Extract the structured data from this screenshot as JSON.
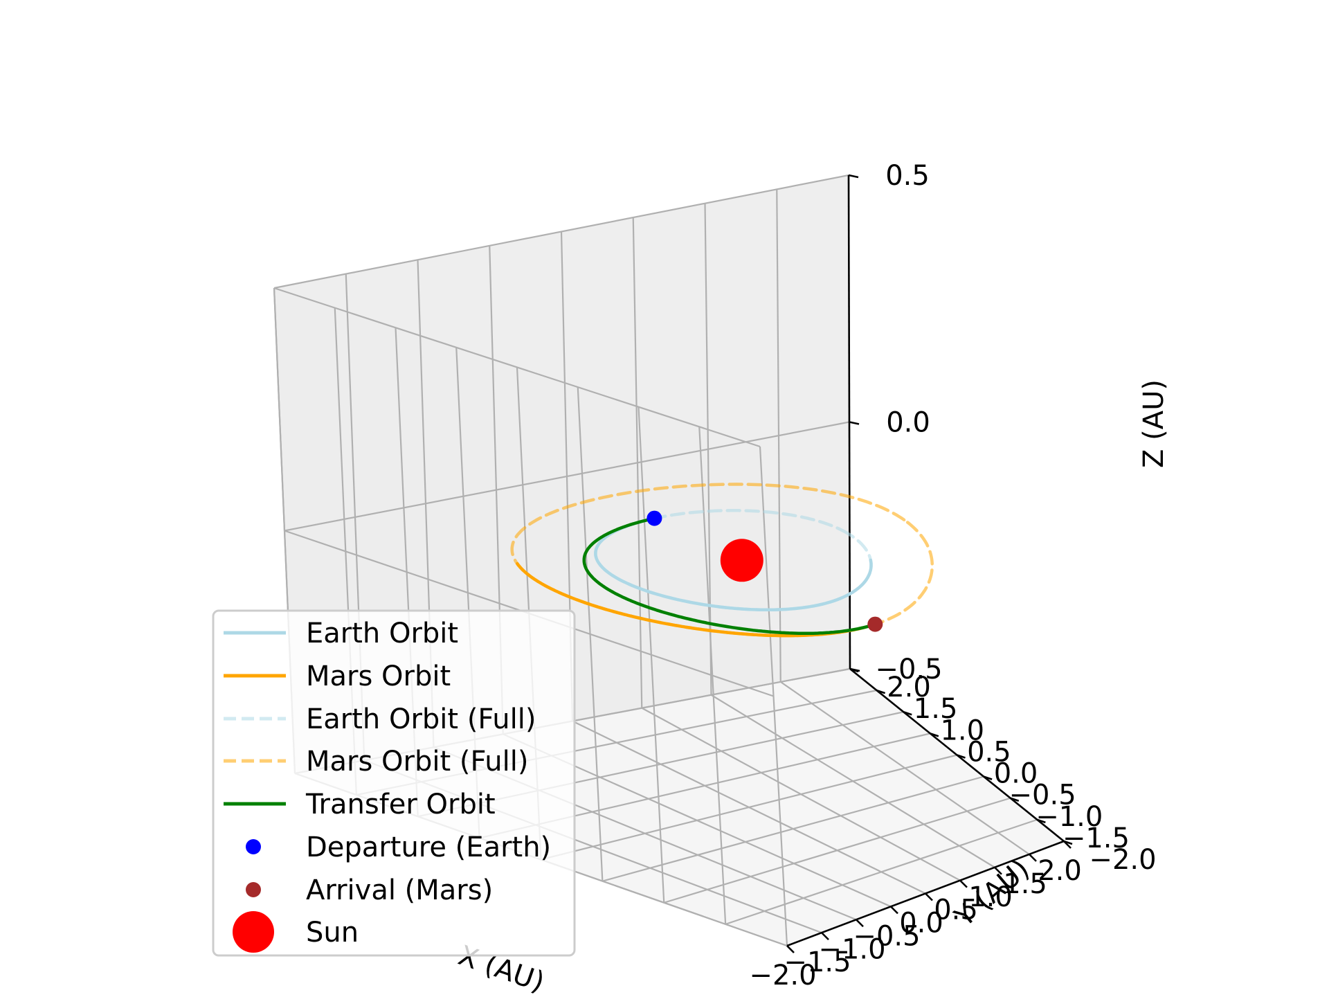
{
  "chart_data": {
    "type": "line",
    "projection": "3d",
    "xlabel": "X (AU)",
    "ylabel": "Y (AU)",
    "zlabel": "Z (AU)",
    "xlim": [
      -2.0,
      2.0
    ],
    "ylim": [
      -2.0,
      2.0
    ],
    "zlim": [
      -0.5,
      0.5
    ],
    "xticks": [
      "−2.0",
      "−1.5",
      "−1.0",
      "−0.5",
      "0.0",
      "0.5",
      "1.0",
      "1.5",
      "2.0"
    ],
    "yticks": [
      "−2.0",
      "−1.5",
      "−1.0",
      "−0.5",
      "0.0",
      "0.5",
      "1.0",
      "1.5",
      "2.0"
    ],
    "zticks": [
      "−0.5",
      "0.0",
      "0.5"
    ],
    "grid": true,
    "legend_position": "lower-left",
    "colors": {
      "earth": "#add8e6",
      "mars": "#ffa500",
      "transfer": "#008000",
      "departure": "#0000ff",
      "arrival": "#a52a2a",
      "sun": "#ff0000"
    },
    "series": [
      {
        "name": "Earth Orbit",
        "style": "solid",
        "radius": 1.0,
        "theta_deg_range": [
          90,
          328
        ]
      },
      {
        "name": "Mars Orbit",
        "style": "solid",
        "radius": 1.524,
        "theta_deg_range": [
          150,
          270
        ]
      },
      {
        "name": "Earth Orbit (Full)",
        "style": "dashed",
        "radius": 1.0,
        "theta_deg_range": [
          0,
          360
        ]
      },
      {
        "name": "Mars Orbit (Full)",
        "style": "dashed",
        "radius": 1.524,
        "theta_deg_range": [
          0,
          360
        ]
      },
      {
        "name": "Transfer Orbit",
        "style": "solid",
        "a": 1.262,
        "e": 0.208,
        "perihelion_deg": 90,
        "theta_deg_range": [
          90,
          270
        ]
      }
    ],
    "points": [
      {
        "name": "Departure (Earth)",
        "x": 0.0,
        "y": 1.0,
        "z": 0.0
      },
      {
        "name": "Arrival (Mars)",
        "x": 0.0,
        "y": -1.524,
        "z": 0.0
      },
      {
        "name": "Sun",
        "x": 0.0,
        "y": 0.0,
        "z": 0.0
      }
    ],
    "legend": [
      "Earth Orbit",
      "Mars Orbit",
      "Earth Orbit (Full)",
      "Mars Orbit (Full)",
      "Transfer Orbit",
      "Departure (Earth)",
      "Arrival (Mars)",
      "Sun"
    ]
  }
}
